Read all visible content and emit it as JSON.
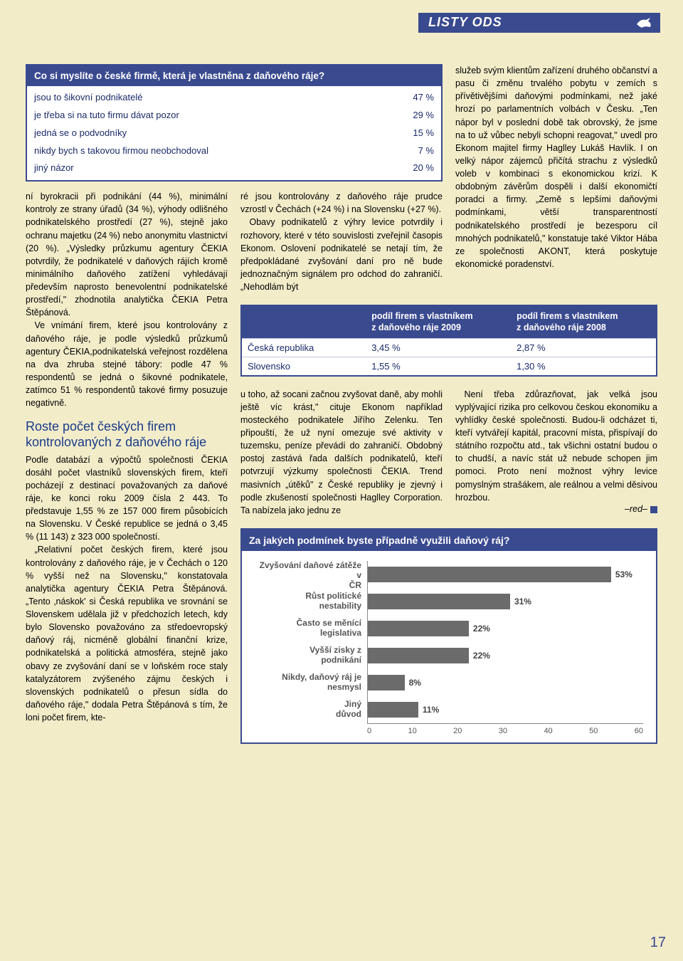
{
  "header": {
    "title": "LISTY ODS"
  },
  "survey1": {
    "question": "Co si myslíte o české firmě, která je vlastněna z daňového ráje?",
    "rows": [
      {
        "label": "jsou to šikovní podnikatelé",
        "pct": "47 %"
      },
      {
        "label": "je třeba si na tuto firmu dávat pozor",
        "pct": "29 %"
      },
      {
        "label": "jedná se o podvodníky",
        "pct": "15 %"
      },
      {
        "label": "nikdy bych s takovou firmou neobchodoval",
        "pct": "7 %"
      },
      {
        "label": "jiný názor",
        "pct": "20 %"
      }
    ]
  },
  "col1": {
    "p1": "ní byrokracii při podnikání (44 %), minimální kontroly ze strany úřadů (34 %), výhody odlišného podnikatelského prostředí (27 %), stejně jako ochranu majetku (24 %) nebo anonymitu vlastnictví (20 %). „Výsledky průzkumu agentury ČEKIA potvrdily, že podnikatelé v daňových rájích kromě minimálního daňového zatížení vyhledávají především naprosto benevolentní podnikatelské prostředí,\" zhodnotila analytička ČEKIA Petra Štěpánová.",
    "p2": "Ve vnímání firem, které jsou kontrolovány z daňového ráje, je podle výsledků průzkumů agentury ČEKIA,podnikatelská veřejnost rozdělena na dva zhruba stejné tábory: podle 47 % respondentů se jedná o šikovné podnikatele, zatímco 51 % respondentů takové firmy posuzuje negativně.",
    "subhead": "Roste počet českých firem kontrolovaných z daňového ráje",
    "p3": "Podle databází a výpočtů společnosti ČEKIA dosáhl počet vlastníků slovenských firem, kteří pocházejí z destinací považovaných za daňové ráje, ke konci roku 2009 čísla 2 443. To představuje 1,55 % ze 157 000 firem působících na Slovensku. V České republice se jedná o 3,45 % (11 143) z 323 000 společností.",
    "p4": "„Relativní počet českých firem, které jsou kontrolovány z daňového ráje, je v Čechách o 120 % vyšší než na Slovensku,\" konstatovala analytička agentury ČEKIA Petra Štěpánová. „Tento ‚náskok' si Česká republika ve srovnání se Slovenskem udělala již v předchozích letech, kdy bylo Slovensko považováno za středoevropský daňový ráj, nicméně globální finanční krize, podnikatelská a politická atmosféra, stejně jako obavy ze zvyšování daní se v loňském roce staly katalyzátorem zvýšeného zájmu českých i slovenských podnikatelů o přesun sídla do daňového ráje,\" dodala Petra Štěpánová s tím, že loni počet firem, kte-"
  },
  "col2": {
    "p1": "ré jsou kontrolovány z daňového ráje prudce vzrostl v Čechách (+24 %) i na Slovensku (+27 %).",
    "p2": "Obavy podnikatelů z výhry levice potvrdily i rozhovory, které v této souvislosti zveřejnil časopis Ekonom. Oslovení podnikatelé se netají tím, že předpokládané zvyšování daní pro ně bude jednoznačným signálem pro odchod do zahraničí. „Nehodlám být",
    "p3": "u toho, až socani začnou zvyšovat daně, aby mohli ještě víc krást,\" cituje Ekonom například mosteckého podnikatele Jiřího Zelenku. Ten připouští, že už nyní omezuje své aktivity v tuzemsku, peníze převádí do zahraničí. Obdobný postoj zastává řada dalších podnikatelů, kteří potvrzují výzkumy společnosti ČEKIA. Trend masivních „útěků\" z České republiky je zjevný i podle zkušeností společnosti Haglley Corporation. Ta nabízela jako jednu ze"
  },
  "col3": {
    "p1": "služeb svým klientům zařízení druhého občanství a pasu či změnu trvalého pobytu v zemích s přívětivějšími daňovými podmínkami, než jaké hrozí po parlamentních volbách v Česku. „Ten nápor byl v poslední době tak obrovský, že jsme na to už vůbec nebyli schopni reagovat,\" uvedl pro Ekonom majitel firmy Haglley Lukáš Havlík. I on velký nápor zájemců přičítá strachu z výsledků voleb v kombinaci s ekonomickou krizí. K obdobným závěrům dospěli i další ekonomičtí poradci a firmy. „Země s lepšími daňovými podmínkami, větší transparentností podnikatelského prostředí je bezesporu cíl mnohých podnikatelů,\" konstatuje také Viktor Hába ze společnosti AKONT, která poskytuje ekonomické poradenství.",
    "p2": "Není třeba zdůrazňovat, jak velká jsou vyplývající rizika pro celkovou českou ekonomiku a vyhlídky české společnosti. Budou-li odcházet ti, kteří vytvářejí kapitál, pracovní místa, přispívají do státního rozpočtu atd., tak všichni ostatní budou o to chudší, a navíc stát už nebude schopen jim pomoci. Proto není možnost výhry levice pomyslným strašákem, ale reálnou a velmi děsivou hrozbou.",
    "sig": "–red–"
  },
  "table2": {
    "h1": "",
    "h2": "podíl firem s vlastníkem z daňového ráje 2009",
    "h3": "podíl firem s vlastníkem z daňového ráje 2008",
    "rows": [
      {
        "country": "Česká republika",
        "y2009": "3,45 %",
        "y2008": "2,87 %"
      },
      {
        "country": "Slovensko",
        "y2009": "1,55 %",
        "y2008": "1,30 %"
      }
    ]
  },
  "chart": {
    "type": "bar-horizontal",
    "question": "Za jakých podmínek byste případně využili daňový ráj?",
    "xmax": 60,
    "xtick_step": 10,
    "xlabels": [
      "0",
      "10",
      "20",
      "30",
      "40",
      "50",
      "60"
    ],
    "bar_color": "#6b6b6b",
    "grid_color": "#cccccc",
    "background": "#ffffff",
    "label_fontsize": 12,
    "bars": [
      {
        "label": "Zvyšování daňové zátěže v ČR",
        "value": 53
      },
      {
        "label": "Růst politické nestability",
        "value": 31
      },
      {
        "label": "Často se měnící legislativa",
        "value": 22
      },
      {
        "label": "Vyšší zisky z podnikání",
        "value": 22
      },
      {
        "label": "Nikdy, daňový ráj je nesmysl",
        "value": 8
      },
      {
        "label": "Jiný důvod",
        "value": 11
      }
    ]
  },
  "page_number": "17"
}
